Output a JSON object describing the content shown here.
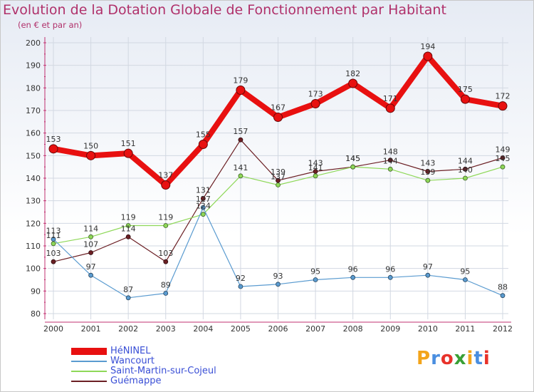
{
  "title": "Evolution de la Dotation Globale de Fonctionnement par Habitant",
  "subtitle": "(en € et par an)",
  "chart_data": {
    "type": "line",
    "x": [
      "2000",
      "2001",
      "2002",
      "2003",
      "2004",
      "2005",
      "2006",
      "2007",
      "2008",
      "2009",
      "2010",
      "2011",
      "2012"
    ],
    "ylim": [
      80,
      200
    ],
    "yticks": [
      80,
      90,
      100,
      110,
      120,
      130,
      140,
      150,
      160,
      170,
      180,
      190,
      200
    ],
    "grid": true,
    "legend_position": "bottom-left",
    "series": [
      {
        "name": "HéNINEL",
        "color": "#e81010",
        "values": [
          153,
          150,
          151,
          137,
          155,
          179,
          167,
          173,
          182,
          171,
          194,
          175,
          172
        ]
      },
      {
        "name": "Wancourt",
        "color": "#5a9bd0",
        "values": [
          113,
          97,
          87,
          89,
          127,
          92,
          93,
          95,
          96,
          96,
          97,
          95,
          88
        ]
      },
      {
        "name": "Saint-Martin-sur-Cojeul",
        "color": "#8ed858",
        "values": [
          111,
          114,
          119,
          119,
          124,
          141,
          137,
          141,
          145,
          144,
          139,
          140,
          145
        ]
      },
      {
        "name": "Guémappe",
        "color": "#6b1f24",
        "values": [
          103,
          107,
          114,
          103,
          131,
          157,
          139,
          143,
          145,
          148,
          143,
          144,
          149
        ]
      }
    ]
  },
  "logo": {
    "text": "Proxiti",
    "colors": [
      "#f3a41a",
      "#4a8ee0",
      "#e8322a",
      "#3aa035",
      "#f3a41a",
      "#4a8ee0",
      "#e8322a"
    ]
  }
}
